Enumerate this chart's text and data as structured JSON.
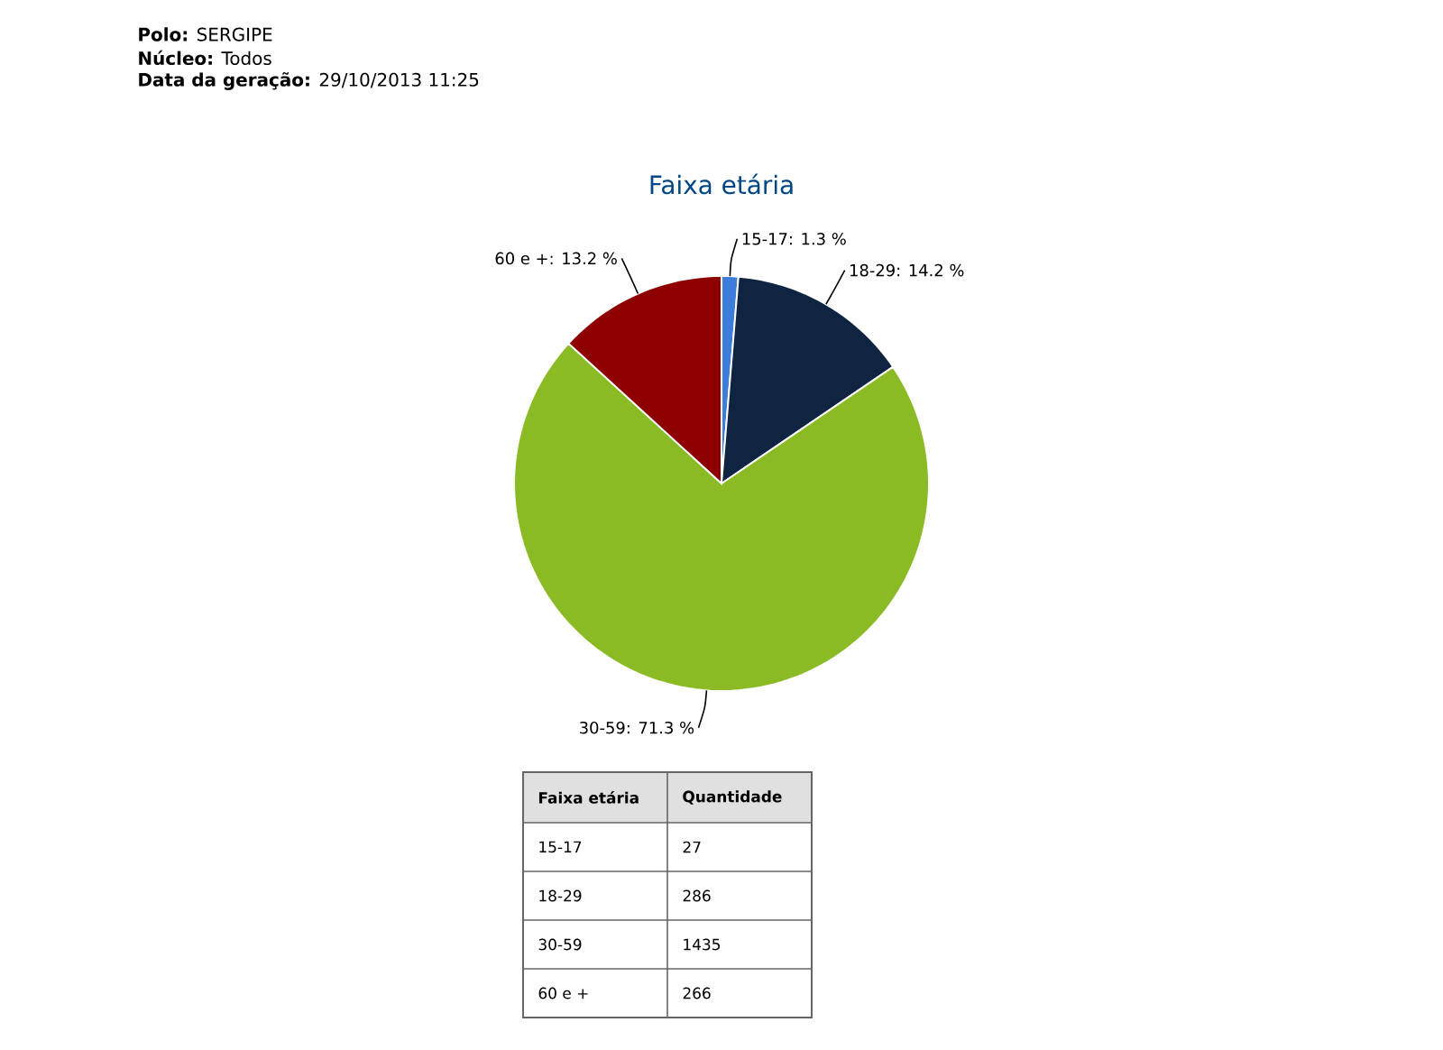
{
  "chart_data": [
    {
      "type": "pie",
      "title": "Faixa etária",
      "categories": [
        "15-17: 1.3 %",
        "18-29: 14.2 %",
        "30-59: 71.3 %",
        "60 e +: 13.2 %"
      ],
      "values": [
        1.3,
        14.2,
        71.3,
        13.2
      ],
      "colors": [
        "#3b7dd8",
        "#0e2440",
        "#8bbb24",
        "#8e0000"
      ],
      "annotations": [
        "**Polo:** SERGIPE",
        "**Núcleo:** Todos",
        "**Data da geração:** 29/10/2013 11:25"
      ]
    },
    {
      "type": "other",
      "categories": [
        "15-17",
        "18-29",
        "30-59",
        "60 e +"
      ],
      "values": [
        27,
        286,
        1435,
        266
      ],
      "data_labels": true,
      "annotations": [
        "Faixa etária",
        "Quantidade"
      ]
    }
  ]
}
